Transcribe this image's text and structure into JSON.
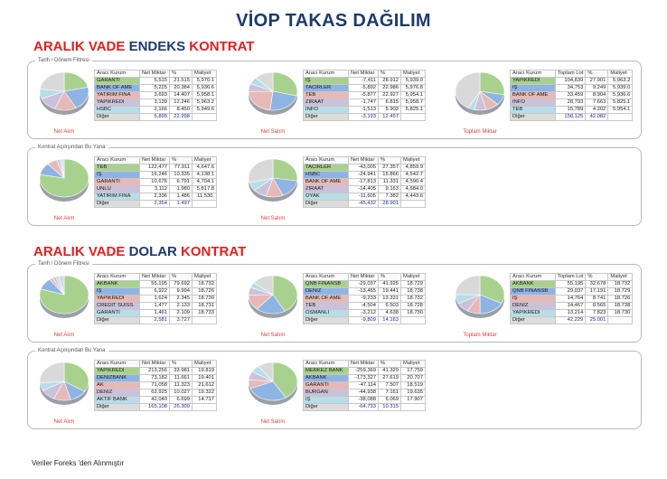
{
  "title": "VİOP TAKAS DAĞILIM",
  "header_labels": {
    "net_miktar": "Net Miktar",
    "pct": "%",
    "maliyet": "Maliyet",
    "toplam_lot": "Toplam Lot",
    "broker": "Aracı Kurum"
  },
  "sections": [
    {
      "heading": {
        "part1": "ARALIK VADE ",
        "part2": "ENDEKS",
        "part3": " KONTRAT"
      },
      "panels": [
        {
          "label": "Tarih / Dönem Filtresi",
          "blocks": [
            {
              "caption": "Net Alım",
              "col2": "Net Miktar",
              "rows": [
                {
                  "name": "GARANTİ",
                  "v1": "5,515",
                  "v2": "21.515",
                  "v3": "5,970.1",
                  "color": "#a9d18e"
                },
                {
                  "name": "BANK OF AME",
                  "v1": "5,225",
                  "v2": "20.384",
                  "v3": "5,936.6",
                  "color": "#8eb4e3"
                },
                {
                  "name": "YATIRIM FİNA",
                  "v1": "3,693",
                  "v2": "14.407",
                  "v3": "5,958.1",
                  "color": "#e6b9b8"
                },
                {
                  "name": "YAPIKREDİ",
                  "v1": "3,139",
                  "v2": "12.246",
                  "v3": "5,963.2",
                  "color": "#ccc1da"
                },
                {
                  "name": "HSBC",
                  "v1": "2,166",
                  "v2": "8.450",
                  "v3": "5,949.6",
                  "color": "#b7dee8"
                },
                {
                  "name": "Diğer",
                  "v1": "5,895",
                  "v2": "22.998",
                  "v3": "",
                  "other": true
                }
              ],
              "pie": [
                21.5,
                20.4,
                14.4,
                12.2,
                8.5,
                23.0
              ]
            },
            {
              "caption": "Net Satım",
              "col2": "Net Miktar",
              "rows": [
                {
                  "name": "İŞ",
                  "v1": "-7,411",
                  "v2": "28.912",
                  "v3": "5,939.0",
                  "color": "#a9d18e"
                },
                {
                  "name": "TACİRLER",
                  "v1": "-5,892",
                  "v2": "22.986",
                  "v3": "5,976.8",
                  "color": "#8eb4e3"
                },
                {
                  "name": "TEB",
                  "v1": "-5,877",
                  "v2": "22.927",
                  "v3": "5,954.1",
                  "color": "#e6b9b8"
                },
                {
                  "name": "ZİRAAT",
                  "v1": "-1,747",
                  "v2": "6.815",
                  "v3": "5,958.7",
                  "color": "#ccc1da"
                },
                {
                  "name": "İNFO",
                  "v1": "-1,513",
                  "v2": "5.903",
                  "v3": "5,825.1",
                  "color": "#b7dee8"
                },
                {
                  "name": "Diğer",
                  "v1": "-3,193",
                  "v2": "12.457",
                  "v3": "",
                  "other": true
                }
              ],
              "pie": [
                28.9,
                23.0,
                22.9,
                6.8,
                5.9,
                12.5
              ]
            },
            {
              "caption": "Toplam Miktar",
              "col2": "Toplam Lot",
              "rows": [
                {
                  "name": "YAPIKREDİ",
                  "v1": "104,839",
                  "v2": "27.901",
                  "v3": "5,963.2",
                  "color": "#a9d18e"
                },
                {
                  "name": "İŞ",
                  "v1": "34,753",
                  "v2": "9.249",
                  "v3": "5,939.0",
                  "color": "#8eb4e3"
                },
                {
                  "name": "BANK OF AME",
                  "v1": "33,459",
                  "v2": "8.904",
                  "v3": "5,936.6",
                  "color": "#e6b9b8"
                },
                {
                  "name": "İNFO",
                  "v1": "28,793",
                  "v2": "7.663",
                  "v3": "5,825.1",
                  "color": "#ccc1da"
                },
                {
                  "name": "TEB",
                  "v1": "15,789",
                  "v2": "4.202",
                  "v3": "5,954.1",
                  "color": "#b7dee8"
                },
                {
                  "name": "Diğer",
                  "v1": "158,125",
                  "v2": "42.082",
                  "v3": "",
                  "other": true
                }
              ],
              "pie": [
                27.9,
                9.2,
                8.9,
                7.7,
                4.2,
                42.1
              ]
            }
          ]
        },
        {
          "label": "Kontrat Açılışından Bu Yana",
          "blocks": [
            {
              "caption": "Net Alım",
              "col2": "Net Miktar",
              "rows": [
                {
                  "name": "TEB",
                  "v1": "122,477",
                  "v2": "77.911",
                  "v3": "4,647.6",
                  "color": "#a9d18e"
                },
                {
                  "name": "İŞ",
                  "v1": "16,246",
                  "v2": "10.335",
                  "v3": "4,138.1",
                  "color": "#8eb4e3"
                },
                {
                  "name": "GARANTİ",
                  "v1": "10,676",
                  "v2": "6.791",
                  "v3": "4,704.1",
                  "color": "#e6b9b8"
                },
                {
                  "name": "ÜNLÜ",
                  "v1": "3,112",
                  "v2": "1.980",
                  "v3": "5,817.8",
                  "color": "#ccc1da"
                },
                {
                  "name": "YATIRIM FİNA",
                  "v1": "2,336",
                  "v2": "1.486",
                  "v3": "11,530.",
                  "color": "#b7dee8"
                },
                {
                  "name": "Diğer",
                  "v1": "2,354",
                  "v2": "1.497",
                  "v3": "",
                  "other": true
                }
              ],
              "pie": [
                77.9,
                10.3,
                6.8,
                2.0,
                1.5,
                1.5
              ]
            },
            {
              "caption": "Net Satım",
              "col2": "Net Miktar",
              "rows": [
                {
                  "name": "TACİRLER",
                  "v1": "-43,005",
                  "v2": "27.357",
                  "v3": "4,859.9",
                  "color": "#a9d18e"
                },
                {
                  "name": "HSBC",
                  "v1": "-24,941",
                  "v2": "15.866",
                  "v3": "4,542.7",
                  "color": "#8eb4e3"
                },
                {
                  "name": "BANK OF AME",
                  "v1": "-17,813",
                  "v2": "11.331",
                  "v3": "4,590.4",
                  "color": "#e6b9b8"
                },
                {
                  "name": "ZİRAAT",
                  "v1": "-14,405",
                  "v2": "9.163",
                  "v3": "4,684.0",
                  "color": "#ccc1da"
                },
                {
                  "name": "OYAK",
                  "v1": "-11,605",
                  "v2": "7.382",
                  "v3": "4,443.6",
                  "color": "#b7dee8"
                },
                {
                  "name": "Diğer",
                  "v1": "-45,432",
                  "v2": "28.901",
                  "v3": "",
                  "other": true
                }
              ],
              "pie": [
                27.4,
                15.9,
                11.3,
                9.2,
                7.4,
                28.9
              ]
            }
          ]
        }
      ]
    },
    {
      "heading": {
        "part1": "ARALIK VADE ",
        "part2": "DOLAR",
        "part3": " KONTRAT"
      },
      "panels": [
        {
          "label": "Tarih / Dönem Filtresi",
          "blocks": [
            {
              "caption": "Net Alım",
              "col2": "Net Miktar",
              "rows": [
                {
                  "name": "AKBANK",
                  "v1": "55,195",
                  "v2": "79.692",
                  "v3": "18.732",
                  "color": "#a9d18e"
                },
                {
                  "name": "İŞ",
                  "v1": "6,922",
                  "v2": "9.994",
                  "v3": "18.726",
                  "color": "#8eb4e3"
                },
                {
                  "name": "YAPIKREDİ",
                  "v1": "1,624",
                  "v2": "2.345",
                  "v3": "18.730",
                  "color": "#e6b9b8"
                },
                {
                  "name": "CREDIT SUISS",
                  "v1": "1,477",
                  "v2": "2.133",
                  "v3": "18.731",
                  "color": "#ccc1da"
                },
                {
                  "name": "GARANTİ",
                  "v1": "1,461",
                  "v2": "2.109",
                  "v3": "18.733",
                  "color": "#b7dee8"
                },
                {
                  "name": "Diğer",
                  "v1": "2,581",
                  "v2": "3.727",
                  "v3": "",
                  "other": true
                }
              ],
              "pie": [
                79.7,
                10.0,
                2.3,
                2.1,
                2.1,
                3.7
              ]
            },
            {
              "caption": "Net Satım",
              "col2": "Net Miktar",
              "rows": [
                {
                  "name": "QNB FİNANSB",
                  "v1": "-29,037",
                  "v2": "41.925",
                  "v3": "18.729",
                  "color": "#a9d18e"
                },
                {
                  "name": "DENİZ",
                  "v1": "-13,465",
                  "v2": "19.441",
                  "v3": "18.738",
                  "color": "#8eb4e3"
                },
                {
                  "name": "BANK OF AME",
                  "v1": "-9,233",
                  "v2": "13.331",
                  "v3": "18.732",
                  "color": "#e6b9b8"
                },
                {
                  "name": "TEB",
                  "v1": "-4,504",
                  "v2": "6.503",
                  "v3": "18.728",
                  "color": "#ccc1da"
                },
                {
                  "name": "OSMANLI",
                  "v1": "-3,212",
                  "v2": "4.638",
                  "v3": "18.730",
                  "color": "#b7dee8"
                },
                {
                  "name": "Diğer",
                  "v1": "-9,809",
                  "v2": "14.163",
                  "v3": "",
                  "other": true
                }
              ],
              "pie": [
                41.9,
                19.4,
                13.3,
                6.5,
                4.6,
                14.2
              ]
            },
            {
              "caption": "Toplam Miktar",
              "col2": "Toplam Lot",
              "rows": [
                {
                  "name": "AKBANK",
                  "v1": "55,195",
                  "v2": "32.678",
                  "v3": "18.732",
                  "color": "#a9d18e"
                },
                {
                  "name": "QNB FİNANSB",
                  "v1": "29,037",
                  "v2": "17.191",
                  "v3": "18.729",
                  "color": "#8eb4e3"
                },
                {
                  "name": "İŞ",
                  "v1": "14,764",
                  "v2": "8.741",
                  "v3": "18.726",
                  "color": "#e6b9b8"
                },
                {
                  "name": "DENİZ",
                  "v1": "14,467",
                  "v2": "8.565",
                  "v3": "18.738",
                  "color": "#ccc1da"
                },
                {
                  "name": "YAPIKREDİ",
                  "v1": "13,214",
                  "v2": "7.823",
                  "v3": "18.730",
                  "color": "#b7dee8"
                },
                {
                  "name": "Diğer",
                  "v1": "42,229",
                  "v2": "25.001",
                  "v3": "",
                  "other": true
                }
              ],
              "pie": [
                32.7,
                17.2,
                8.7,
                8.6,
                7.8,
                25.0
              ]
            }
          ]
        },
        {
          "label": "Kontrat Açılışından Bu Yana",
          "blocks": [
            {
              "caption": "Net Alım",
              "col2": "Net Miktar",
              "rows": [
                {
                  "name": "YAPIKREDİ",
                  "v1": "213,256",
                  "v2": "33.981",
                  "v3": "19.819",
                  "color": "#a9d18e"
                },
                {
                  "name": "DENİZBANK",
                  "v1": "73,182",
                  "v2": "11.661",
                  "v3": "19.401",
                  "color": "#8eb4e3"
                },
                {
                  "name": "AK",
                  "v1": "71,058",
                  "v2": "11.323",
                  "v3": "21.612",
                  "color": "#e6b9b8"
                },
                {
                  "name": "DENİZ",
                  "v1": "62,925",
                  "v2": "10.027",
                  "v3": "19.322",
                  "color": "#ccc1da"
                },
                {
                  "name": "AKTİF BANK",
                  "v1": "42,040",
                  "v2": "6.699",
                  "v3": "14.717",
                  "color": "#b7dee8"
                },
                {
                  "name": "Diğer",
                  "v1": "165,108",
                  "v2": "26.309",
                  "v3": "",
                  "other": true
                }
              ],
              "pie": [
                34.0,
                11.7,
                11.3,
                10.0,
                6.7,
                26.3
              ]
            },
            {
              "caption": "Net Satım",
              "col2": "Net Miktar",
              "rows": [
                {
                  "name": "MERKEZ BANK",
                  "v1": "-259,369",
                  "v2": "41.329",
                  "v3": "17.759",
                  "color": "#a9d18e"
                },
                {
                  "name": "AKBANK",
                  "v1": "-173,327",
                  "v2": "27.619",
                  "v3": "20.707",
                  "color": "#8eb4e3"
                },
                {
                  "name": "GARANTİ",
                  "v1": "-47,114",
                  "v2": "7.507",
                  "v3": "18.519",
                  "color": "#e6b9b8"
                },
                {
                  "name": "BURGAN",
                  "v1": "-44,938",
                  "v2": "7.161",
                  "v3": "19.635",
                  "color": "#ccc1da"
                },
                {
                  "name": "İŞ",
                  "v1": "-38,088",
                  "v2": "6.069",
                  "v3": "17.907",
                  "color": "#b7dee8"
                },
                {
                  "name": "Diğer",
                  "v1": "-64,733",
                  "v2": "10.315",
                  "v3": "",
                  "other": true
                }
              ],
              "pie": [
                41.3,
                27.6,
                7.5,
                7.2,
                6.1,
                10.3
              ]
            }
          ]
        }
      ]
    }
  ],
  "pie_colors": [
    "#a9d18e",
    "#8eb4e3",
    "#e6b9b8",
    "#ccc1da",
    "#b7dee8",
    "#d9d9d9"
  ],
  "footer": "Veriler Foreks 'den Alınmıştır"
}
